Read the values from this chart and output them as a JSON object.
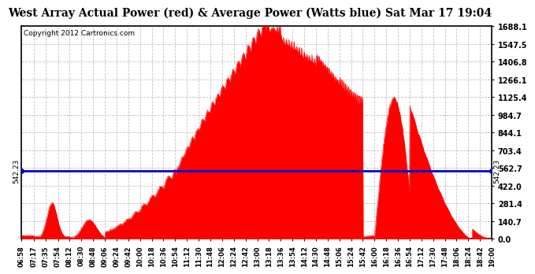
{
  "title": "West Array Actual Power (red) & Average Power (Watts blue) Sat Mar 17 19:04",
  "copyright": "Copyright 2012 Cartronics.com",
  "avg_power": 542.23,
  "y_ticks": [
    0.0,
    140.7,
    281.4,
    422.0,
    562.7,
    703.4,
    844.1,
    984.7,
    1125.4,
    1266.1,
    1406.8,
    1547.5,
    1688.1
  ],
  "y_max": 1688.1,
  "background_color": "#ffffff",
  "fill_color": "#ff0000",
  "avg_line_color": "#0000cc",
  "grid_color": "#bbbbbb",
  "title_fontsize": 10,
  "x_labels": [
    "06:58",
    "07:17",
    "07:35",
    "07:54",
    "08:12",
    "08:30",
    "08:48",
    "09:06",
    "09:24",
    "09:42",
    "10:00",
    "10:18",
    "10:36",
    "10:54",
    "11:12",
    "11:30",
    "11:48",
    "12:06",
    "12:24",
    "12:42",
    "13:00",
    "13:18",
    "13:36",
    "13:54",
    "14:12",
    "14:30",
    "14:48",
    "15:06",
    "15:24",
    "15:42",
    "16:00",
    "16:18",
    "16:36",
    "16:54",
    "17:12",
    "17:30",
    "17:48",
    "18:06",
    "18:24",
    "18:42",
    "19:00"
  ],
  "start_time": "06:58",
  "end_time": "19:00"
}
